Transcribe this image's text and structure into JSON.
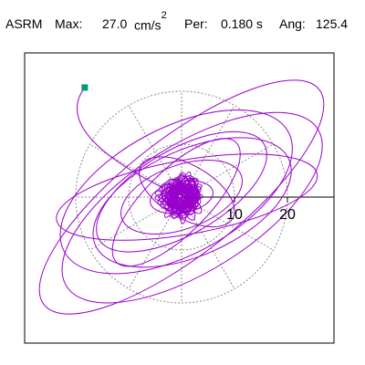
{
  "header": {
    "label_left": "ASRM",
    "max_label": "Max:",
    "max_value": "27.0",
    "max_unit": "cm/s",
    "max_exp": "2",
    "per_label": "Per:",
    "per_value": "0.180 s",
    "ang_label": "Ang:",
    "ang_value": "125.4"
  },
  "chart_data": {
    "type": "polar-orbit",
    "max_amplitude": 27.0,
    "units": "cm/s^2",
    "period_s": 0.18,
    "angle_deg": 125.4,
    "radial_ticks": [
      10,
      20
    ],
    "grid_rings": [
      10,
      20
    ],
    "grid_spokes_deg": [
      0,
      30,
      60,
      90,
      120,
      150,
      180,
      210,
      240,
      270,
      300,
      330
    ],
    "grid": true,
    "trace_color": "#9900cc",
    "grid_color": "#8a8a8a",
    "start_marker_color": "#00997a",
    "start_point": [
      -18.3,
      20.7
    ],
    "orbit_ellipses": [
      {
        "cx": 0,
        "cy": 0,
        "a": 33,
        "b": 11,
        "rot": -38
      },
      {
        "cx": 2,
        "cy": -2,
        "a": 28,
        "b": 12,
        "rot": -32
      },
      {
        "cx": -1,
        "cy": 1,
        "a": 24,
        "b": 12,
        "rot": -28
      },
      {
        "cx": 1,
        "cy": 0,
        "a": 25,
        "b": 7,
        "rot": -10
      },
      {
        "cx": 0,
        "cy": 1,
        "a": 18,
        "b": 8,
        "rot": -30
      },
      {
        "cx": 2,
        "cy": -1,
        "a": 20,
        "b": 10,
        "rot": -24
      },
      {
        "cx": -1,
        "cy": -1,
        "a": 16,
        "b": 6,
        "rot": -45
      },
      {
        "cx": 0,
        "cy": 0,
        "a": 12,
        "b": 6,
        "rot": -20
      },
      {
        "cx": 1,
        "cy": 1,
        "a": 10,
        "b": 5,
        "rot": 30
      },
      {
        "cx": 0,
        "cy": 0,
        "a": 6,
        "b": 3,
        "rot": -10
      }
    ]
  }
}
